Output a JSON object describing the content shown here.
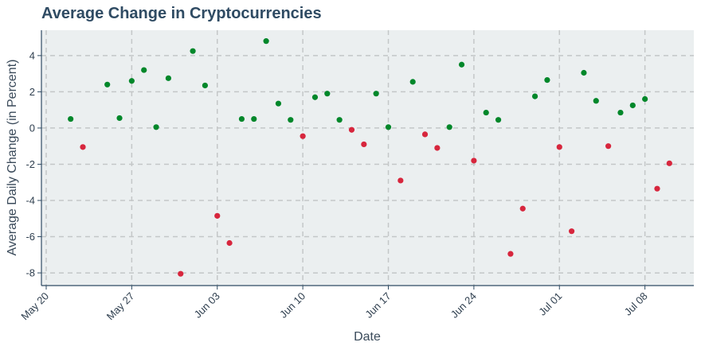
{
  "chart_data": {
    "type": "scatter",
    "title": "Average Change in Cryptocurrencies",
    "xlabel": "Date",
    "ylabel": "Average Daily Change (in Percent)",
    "x_tick_labels": [
      "May 20",
      "May 27",
      "Jun 03",
      "Jun 10",
      "Jun 17",
      "Jun 24",
      "Jul 01",
      "Jul 08"
    ],
    "y_tick_labels": [
      "4",
      "2",
      "0",
      "-2",
      "-4",
      "-6",
      "-8"
    ],
    "x_ticks": [
      "2024-05-20",
      "2024-05-27",
      "2024-06-03",
      "2024-06-10",
      "2024-06-17",
      "2024-06-24",
      "2024-07-01",
      "2024-07-08"
    ],
    "y_ticks": [
      4,
      2,
      0,
      -2,
      -4,
      -6,
      -8
    ],
    "xlim": [
      "2024-05-20",
      "2024-07-12"
    ],
    "ylim": [
      -8.7,
      5.4
    ],
    "grid": true,
    "colors": {
      "positive": "#00872a",
      "negative": "#d7263d",
      "plot_background": "#ebeff0",
      "grid": "#c4c7c8",
      "axis": "#2f4b63"
    },
    "points": [
      {
        "date": "2024-05-22",
        "value": 0.5
      },
      {
        "date": "2024-05-23",
        "value": -1.05
      },
      {
        "date": "2024-05-25",
        "value": 2.4
      },
      {
        "date": "2024-05-26",
        "value": 0.55
      },
      {
        "date": "2024-05-27",
        "value": 2.6
      },
      {
        "date": "2024-05-28",
        "value": 3.2
      },
      {
        "date": "2024-05-29",
        "value": 0.05
      },
      {
        "date": "2024-05-30",
        "value": 2.75
      },
      {
        "date": "2024-05-31",
        "value": -8.05
      },
      {
        "date": "2024-06-01",
        "value": 4.25
      },
      {
        "date": "2024-06-02",
        "value": 2.35
      },
      {
        "date": "2024-06-03",
        "value": -4.85
      },
      {
        "date": "2024-06-04",
        "value": -6.35
      },
      {
        "date": "2024-06-05",
        "value": 0.5
      },
      {
        "date": "2024-06-06",
        "value": 0.5
      },
      {
        "date": "2024-06-07",
        "value": 4.8
      },
      {
        "date": "2024-06-08",
        "value": 1.35
      },
      {
        "date": "2024-06-09",
        "value": 0.45
      },
      {
        "date": "2024-06-10",
        "value": -0.45
      },
      {
        "date": "2024-06-11",
        "value": 1.7
      },
      {
        "date": "2024-06-12",
        "value": 1.9
      },
      {
        "date": "2024-06-13",
        "value": 0.45
      },
      {
        "date": "2024-06-14",
        "value": -0.1
      },
      {
        "date": "2024-06-15",
        "value": -0.9
      },
      {
        "date": "2024-06-16",
        "value": 1.9
      },
      {
        "date": "2024-06-17",
        "value": 0.05
      },
      {
        "date": "2024-06-18",
        "value": -2.9
      },
      {
        "date": "2024-06-19",
        "value": 2.55
      },
      {
        "date": "2024-06-20",
        "value": -0.35
      },
      {
        "date": "2024-06-21",
        "value": -1.1
      },
      {
        "date": "2024-06-22",
        "value": 0.05
      },
      {
        "date": "2024-06-23",
        "value": 3.5
      },
      {
        "date": "2024-06-24",
        "value": -1.8
      },
      {
        "date": "2024-06-25",
        "value": 0.85
      },
      {
        "date": "2024-06-26",
        "value": 0.45
      },
      {
        "date": "2024-06-27",
        "value": -6.95
      },
      {
        "date": "2024-06-28",
        "value": -4.45
      },
      {
        "date": "2024-06-29",
        "value": 1.75
      },
      {
        "date": "2024-06-30",
        "value": 2.65
      },
      {
        "date": "2024-07-01",
        "value": -1.05
      },
      {
        "date": "2024-07-02",
        "value": -5.7
      },
      {
        "date": "2024-07-03",
        "value": 3.05
      },
      {
        "date": "2024-07-04",
        "value": 1.5
      },
      {
        "date": "2024-07-05",
        "value": -1.0
      },
      {
        "date": "2024-07-06",
        "value": 0.85
      },
      {
        "date": "2024-07-07",
        "value": 1.25
      },
      {
        "date": "2024-07-08",
        "value": 1.6
      },
      {
        "date": "2024-07-09",
        "value": -3.35
      },
      {
        "date": "2024-07-10",
        "value": -1.95
      }
    ]
  }
}
